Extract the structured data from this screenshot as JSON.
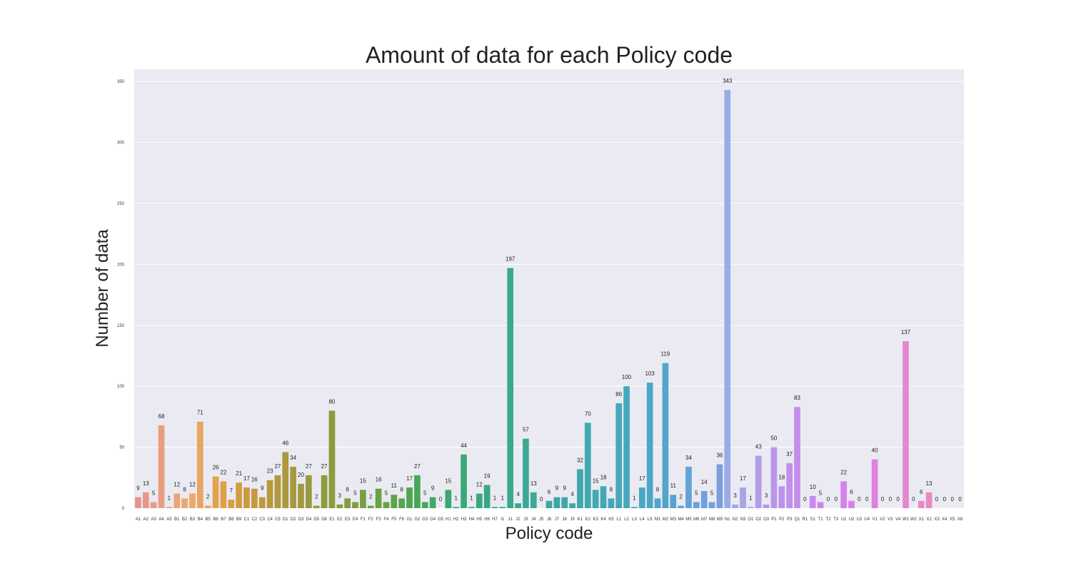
{
  "chart_data": {
    "type": "bar",
    "title": "Amount of data for each Policy code",
    "xlabel": "Policy code",
    "ylabel": "Number of data",
    "ylim": [
      0,
      360
    ],
    "yticks": [
      0,
      50,
      100,
      150,
      200,
      250,
      300,
      350
    ],
    "grid": true,
    "legend": "none",
    "categories": [
      "A1",
      "A2",
      "A3",
      "A4",
      "A5",
      "B1",
      "B2",
      "B3",
      "B4",
      "B5",
      "B6",
      "B7",
      "B8",
      "B9",
      "C1",
      "C2",
      "C3",
      "C4",
      "C5",
      "D1",
      "D2",
      "D3",
      "D4",
      "D5",
      "D6",
      "E1",
      "E2",
      "E3",
      "E4",
      "F1",
      "F2",
      "F3",
      "F4",
      "F5",
      "F6",
      "G1",
      "G2",
      "G3",
      "G4",
      "G5",
      "H1",
      "H2",
      "H3",
      "H4",
      "H5",
      "H6",
      "H7",
      "I1",
      "J1",
      "J2",
      "J3",
      "J4",
      "J5",
      "J6",
      "J7",
      "J8",
      "J9",
      "K1",
      "K2",
      "K3",
      "K4",
      "K5",
      "L1",
      "L2",
      "L3",
      "L4",
      "L5",
      "M1",
      "M2",
      "M3",
      "M4",
      "M5",
      "M6",
      "M7",
      "M8",
      "M9",
      "N1",
      "N2",
      "N3",
      "O1",
      "O2",
      "O3",
      "P1",
      "P2",
      "P3",
      "Q1",
      "R1",
      "S1",
      "T1",
      "T2",
      "T3",
      "U1",
      "U2",
      "U3",
      "U4",
      "V1",
      "V2",
      "V3",
      "V4",
      "W1",
      "W2",
      "X1",
      "X2",
      "X3",
      "X4",
      "X5",
      "X6"
    ],
    "values": [
      9,
      13,
      5,
      68,
      1,
      12,
      8,
      12,
      71,
      2,
      26,
      22,
      7,
      21,
      17,
      16,
      9,
      23,
      27,
      46,
      34,
      20,
      27,
      2,
      27,
      80,
      3,
      8,
      5,
      15,
      2,
      16,
      5,
      11,
      8,
      17,
      27,
      5,
      9,
      0,
      15,
      1,
      44,
      1,
      12,
      19,
      1,
      1,
      197,
      4,
      57,
      13,
      0,
      6,
      9,
      9,
      4,
      32,
      70,
      15,
      18,
      8,
      86,
      100,
      1,
      17,
      103,
      8,
      119,
      11,
      2,
      34,
      5,
      14,
      5,
      36,
      343,
      3,
      17,
      1,
      43,
      3,
      50,
      18,
      37,
      83,
      0,
      10,
      5,
      0,
      0,
      22,
      6,
      0,
      0,
      40,
      0,
      0,
      0,
      137,
      0,
      6,
      13,
      0,
      0,
      0,
      0
    ],
    "colors": [
      "#e8948e",
      "#e9968b",
      "#ea9a85",
      "#eb9e7e",
      "#eba07a",
      "#eca476",
      "#eca770",
      "#eba96a",
      "#e9a65e",
      "#e6a456",
      "#e3a24f",
      "#dfa047",
      "#d99e43",
      "#d39c41",
      "#cc9a3f",
      "#c69a3e",
      "#bf993d",
      "#b8993d",
      "#b1993c",
      "#ab993c",
      "#a6993d",
      "#a0993e",
      "#9b993e",
      "#969a3e",
      "#919a3e",
      "#8c9b3e",
      "#889c3f",
      "#829d40",
      "#7d9e40",
      "#789f41",
      "#72a043",
      "#6ba145",
      "#64a247",
      "#5da449",
      "#56a54b",
      "#4ea64f",
      "#48a756",
      "#43a85e",
      "#3fa865",
      "#3ca86b",
      "#3aa870",
      "#39a874",
      "#39a879",
      "#39a87d",
      "#39a881",
      "#39a884",
      "#39a888",
      "#39a88b",
      "#3aa88f",
      "#3aa893",
      "#3ba896",
      "#3ba899",
      "#3ca89c",
      "#3ca89f",
      "#3da8a2",
      "#3ea8a5",
      "#3fa8a8",
      "#40a8ab",
      "#41a8ae",
      "#42a8b1",
      "#43a8b4",
      "#44a8b7",
      "#45a8ba",
      "#47a8bd",
      "#48a8c0",
      "#4aa8c3",
      "#4ca7c6",
      "#4fa6c9",
      "#53a5cc",
      "#58a4cf",
      "#5ea3d2",
      "#64a2d5",
      "#6aa1d7",
      "#70a0da",
      "#769fdc",
      "#7c9edf",
      "#9aace4",
      "#a2a8e5",
      "#a8a4e6",
      "#ada0e7",
      "#b29ce8",
      "#b698e9",
      "#ba95ea",
      "#be92eb",
      "#c18fec",
      "#c48ced",
      "#c78aed",
      "#ca88ee",
      "#cd86ee",
      "#d084ee",
      "#d383ed",
      "#d682ec",
      "#d981ea",
      "#dc80e8",
      "#de80e5",
      "#e081e1",
      "#e282dd",
      "#e383d9",
      "#e485d5",
      "#e587d0",
      "#e688cc",
      "#e78ac7",
      "#e78cc3",
      "#e88ebe",
      "#e890ba",
      "#e892b5",
      "#e894b0"
    ]
  }
}
